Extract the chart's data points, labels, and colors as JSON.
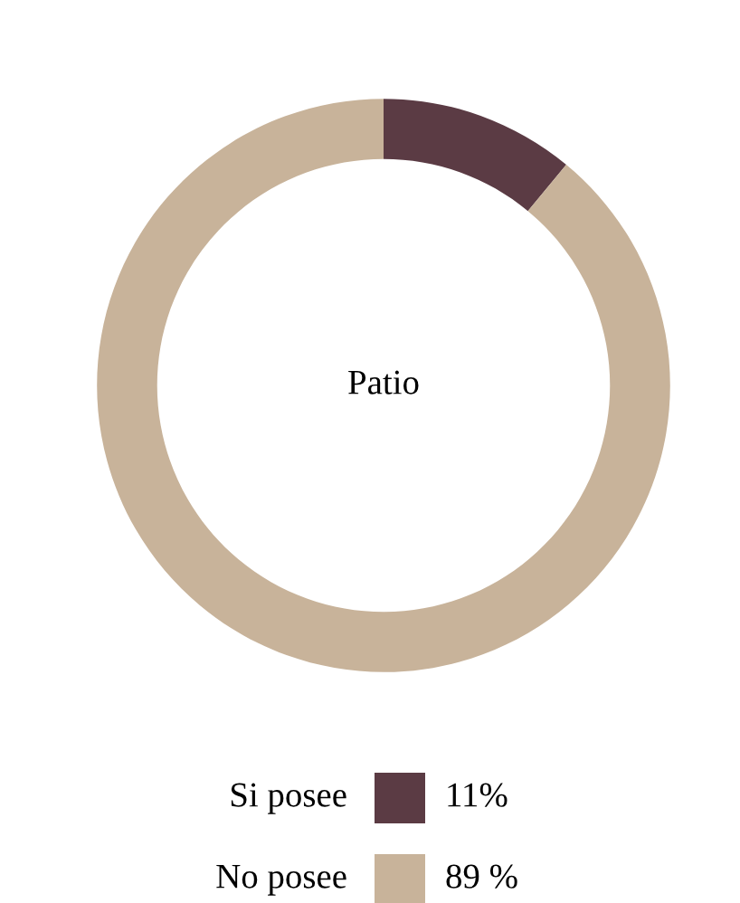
{
  "chart_data": {
    "type": "donut",
    "title": "Patio",
    "categories": [
      "Si posee",
      "No posee"
    ],
    "values": [
      11,
      89
    ],
    "colors": [
      "#5b3b44",
      "#c8b39a"
    ],
    "value_labels": [
      "11%",
      "89 %"
    ],
    "legend": "bottom"
  }
}
